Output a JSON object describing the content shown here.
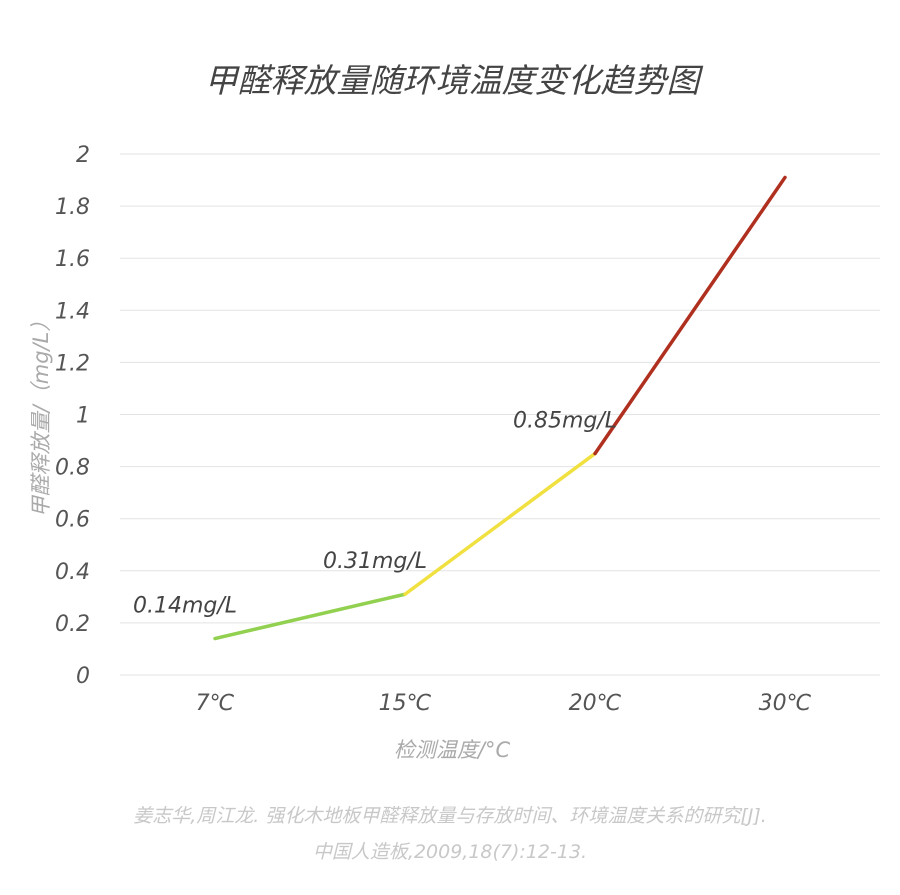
{
  "chart_data": {
    "type": "line",
    "title": "甲醛释放量随环境温度变化趋势图",
    "xlabel": "检测温度/°C",
    "ylabel": "甲醛释放量/（mg/L）",
    "categories": [
      "7℃",
      "15℃",
      "20℃",
      "30℃"
    ],
    "values": [
      0.14,
      0.31,
      0.85,
      1.91
    ],
    "segment_colors": [
      "#92d050",
      "#f0e040",
      "#b03020"
    ],
    "data_labels": [
      {
        "index": 0,
        "text": "0.14mg/L"
      },
      {
        "index": 1,
        "text": "0.31mg/L"
      },
      {
        "index": 2,
        "text": "0.85mg/L"
      }
    ],
    "ylim": [
      0,
      2
    ],
    "yticks": [
      "0",
      "0.2",
      "0.4",
      "0.6",
      "0.8",
      "1",
      "1.2",
      "1.4",
      "1.6",
      "1.8",
      "2"
    ],
    "grid": true,
    "legend": "none"
  },
  "source": {
    "line1": "姜志华,周江龙. 强化木地板甲醛释放量与存放时间、环境温度关系的研究[J].",
    "line2": "中国人造板,2009,18(7):12-13."
  }
}
